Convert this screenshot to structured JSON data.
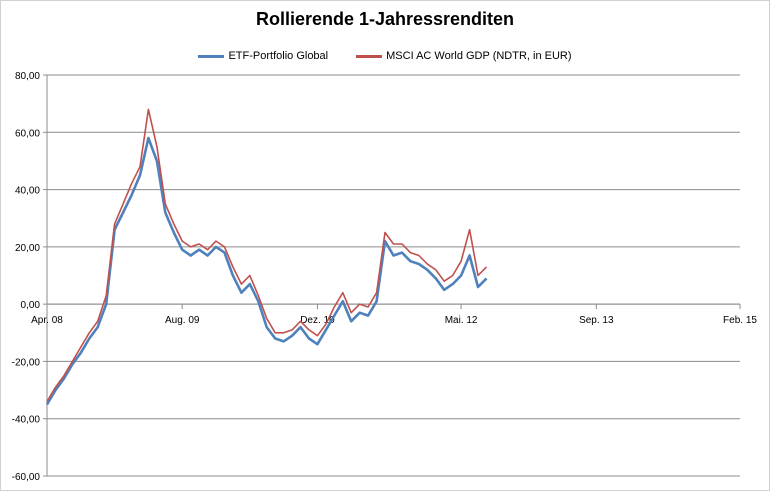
{
  "chart_data": {
    "type": "line",
    "title": "Rollierende 1-Jahressrenditen",
    "xlabel": "",
    "ylabel": "",
    "ylim": [
      -60,
      80
    ],
    "y_ticks": [
      "80,00",
      "60,00",
      "40,00",
      "20,00",
      "0,00",
      "-20,00",
      "-40,00",
      "-60,00"
    ],
    "y_tick_values": [
      80,
      60,
      40,
      20,
      0,
      -20,
      -40,
      -60
    ],
    "x_ticks": [
      "Apr. 08",
      "Aug. 09",
      "Dez. 10",
      "Mai. 12",
      "Sep. 13",
      "Feb. 15"
    ],
    "x_tick_values": [
      "2008-04",
      "2009-08",
      "2010-12",
      "2012-05",
      "2013-09",
      "2015-02"
    ],
    "grid": "horizontal",
    "legend": "top",
    "colors": {
      "etf": "#4F81BD",
      "msci": "#C0504D",
      "grid": "#8c8c8c",
      "axis": "#8c8c8c"
    },
    "series": [
      {
        "name": "ETF-Portfolio Global",
        "x": [
          "2008-04",
          "2008-05",
          "2008-06",
          "2008-07",
          "2008-08",
          "2008-09",
          "2008-10",
          "2008-11",
          "2008-12",
          "2009-01",
          "2009-02",
          "2009-03",
          "2009-04",
          "2009-05",
          "2009-06",
          "2009-07",
          "2009-08",
          "2009-09",
          "2009-10",
          "2009-11",
          "2009-12",
          "2010-01",
          "2010-02",
          "2010-03",
          "2010-04",
          "2010-05",
          "2010-06",
          "2010-07",
          "2010-08",
          "2010-09",
          "2010-10",
          "2010-11",
          "2010-12",
          "2011-01",
          "2011-02",
          "2011-03",
          "2011-04",
          "2011-05",
          "2011-06",
          "2011-07",
          "2011-08",
          "2011-09",
          "2011-10",
          "2011-11",
          "2011-12",
          "2012-01",
          "2012-02",
          "2012-03",
          "2012-04",
          "2012-05",
          "2012-06",
          "2012-07",
          "2012-08"
        ],
        "values": [
          -35,
          -30,
          -26,
          -21,
          -17,
          -12,
          -8,
          0,
          26,
          32,
          38,
          45,
          58,
          50,
          32,
          25,
          19,
          17,
          19,
          17,
          20,
          18,
          10,
          4,
          7,
          1,
          -8,
          -12,
          -13,
          -11,
          -8,
          -12,
          -14,
          -9,
          -4,
          1,
          -6,
          -3,
          -4,
          1,
          22,
          17,
          18,
          15,
          14,
          12,
          9,
          5,
          7,
          10,
          17,
          6,
          9
        ]
      },
      {
        "name": "MSCI AC World GDP (NDTR,  in EUR)",
        "x": [
          "2008-04",
          "2008-05",
          "2008-06",
          "2008-07",
          "2008-08",
          "2008-09",
          "2008-10",
          "2008-11",
          "2008-12",
          "2009-01",
          "2009-02",
          "2009-03",
          "2009-04",
          "2009-05",
          "2009-06",
          "2009-07",
          "2009-08",
          "2009-09",
          "2009-10",
          "2009-11",
          "2009-12",
          "2010-01",
          "2010-02",
          "2010-03",
          "2010-04",
          "2010-05",
          "2010-06",
          "2010-07",
          "2010-08",
          "2010-09",
          "2010-10",
          "2010-11",
          "2010-12",
          "2011-01",
          "2011-02",
          "2011-03",
          "2011-04",
          "2011-05",
          "2011-06",
          "2011-07",
          "2011-08",
          "2011-09",
          "2011-10",
          "2011-11",
          "2011-12",
          "2012-01",
          "2012-02",
          "2012-03",
          "2012-04",
          "2012-05",
          "2012-06",
          "2012-07",
          "2012-08"
        ],
        "values": [
          -34,
          -29,
          -25,
          -20,
          -15,
          -10,
          -6,
          3,
          28,
          35,
          42,
          48,
          68,
          55,
          35,
          28,
          22,
          20,
          21,
          19,
          22,
          20,
          13,
          7,
          10,
          3,
          -5,
          -10,
          -10,
          -9,
          -6,
          -9,
          -11,
          -7,
          -1,
          4,
          -3,
          0,
          -1,
          4,
          25,
          21,
          21,
          18,
          17,
          14,
          12,
          8,
          10,
          15,
          26,
          10,
          13
        ]
      }
    ]
  }
}
